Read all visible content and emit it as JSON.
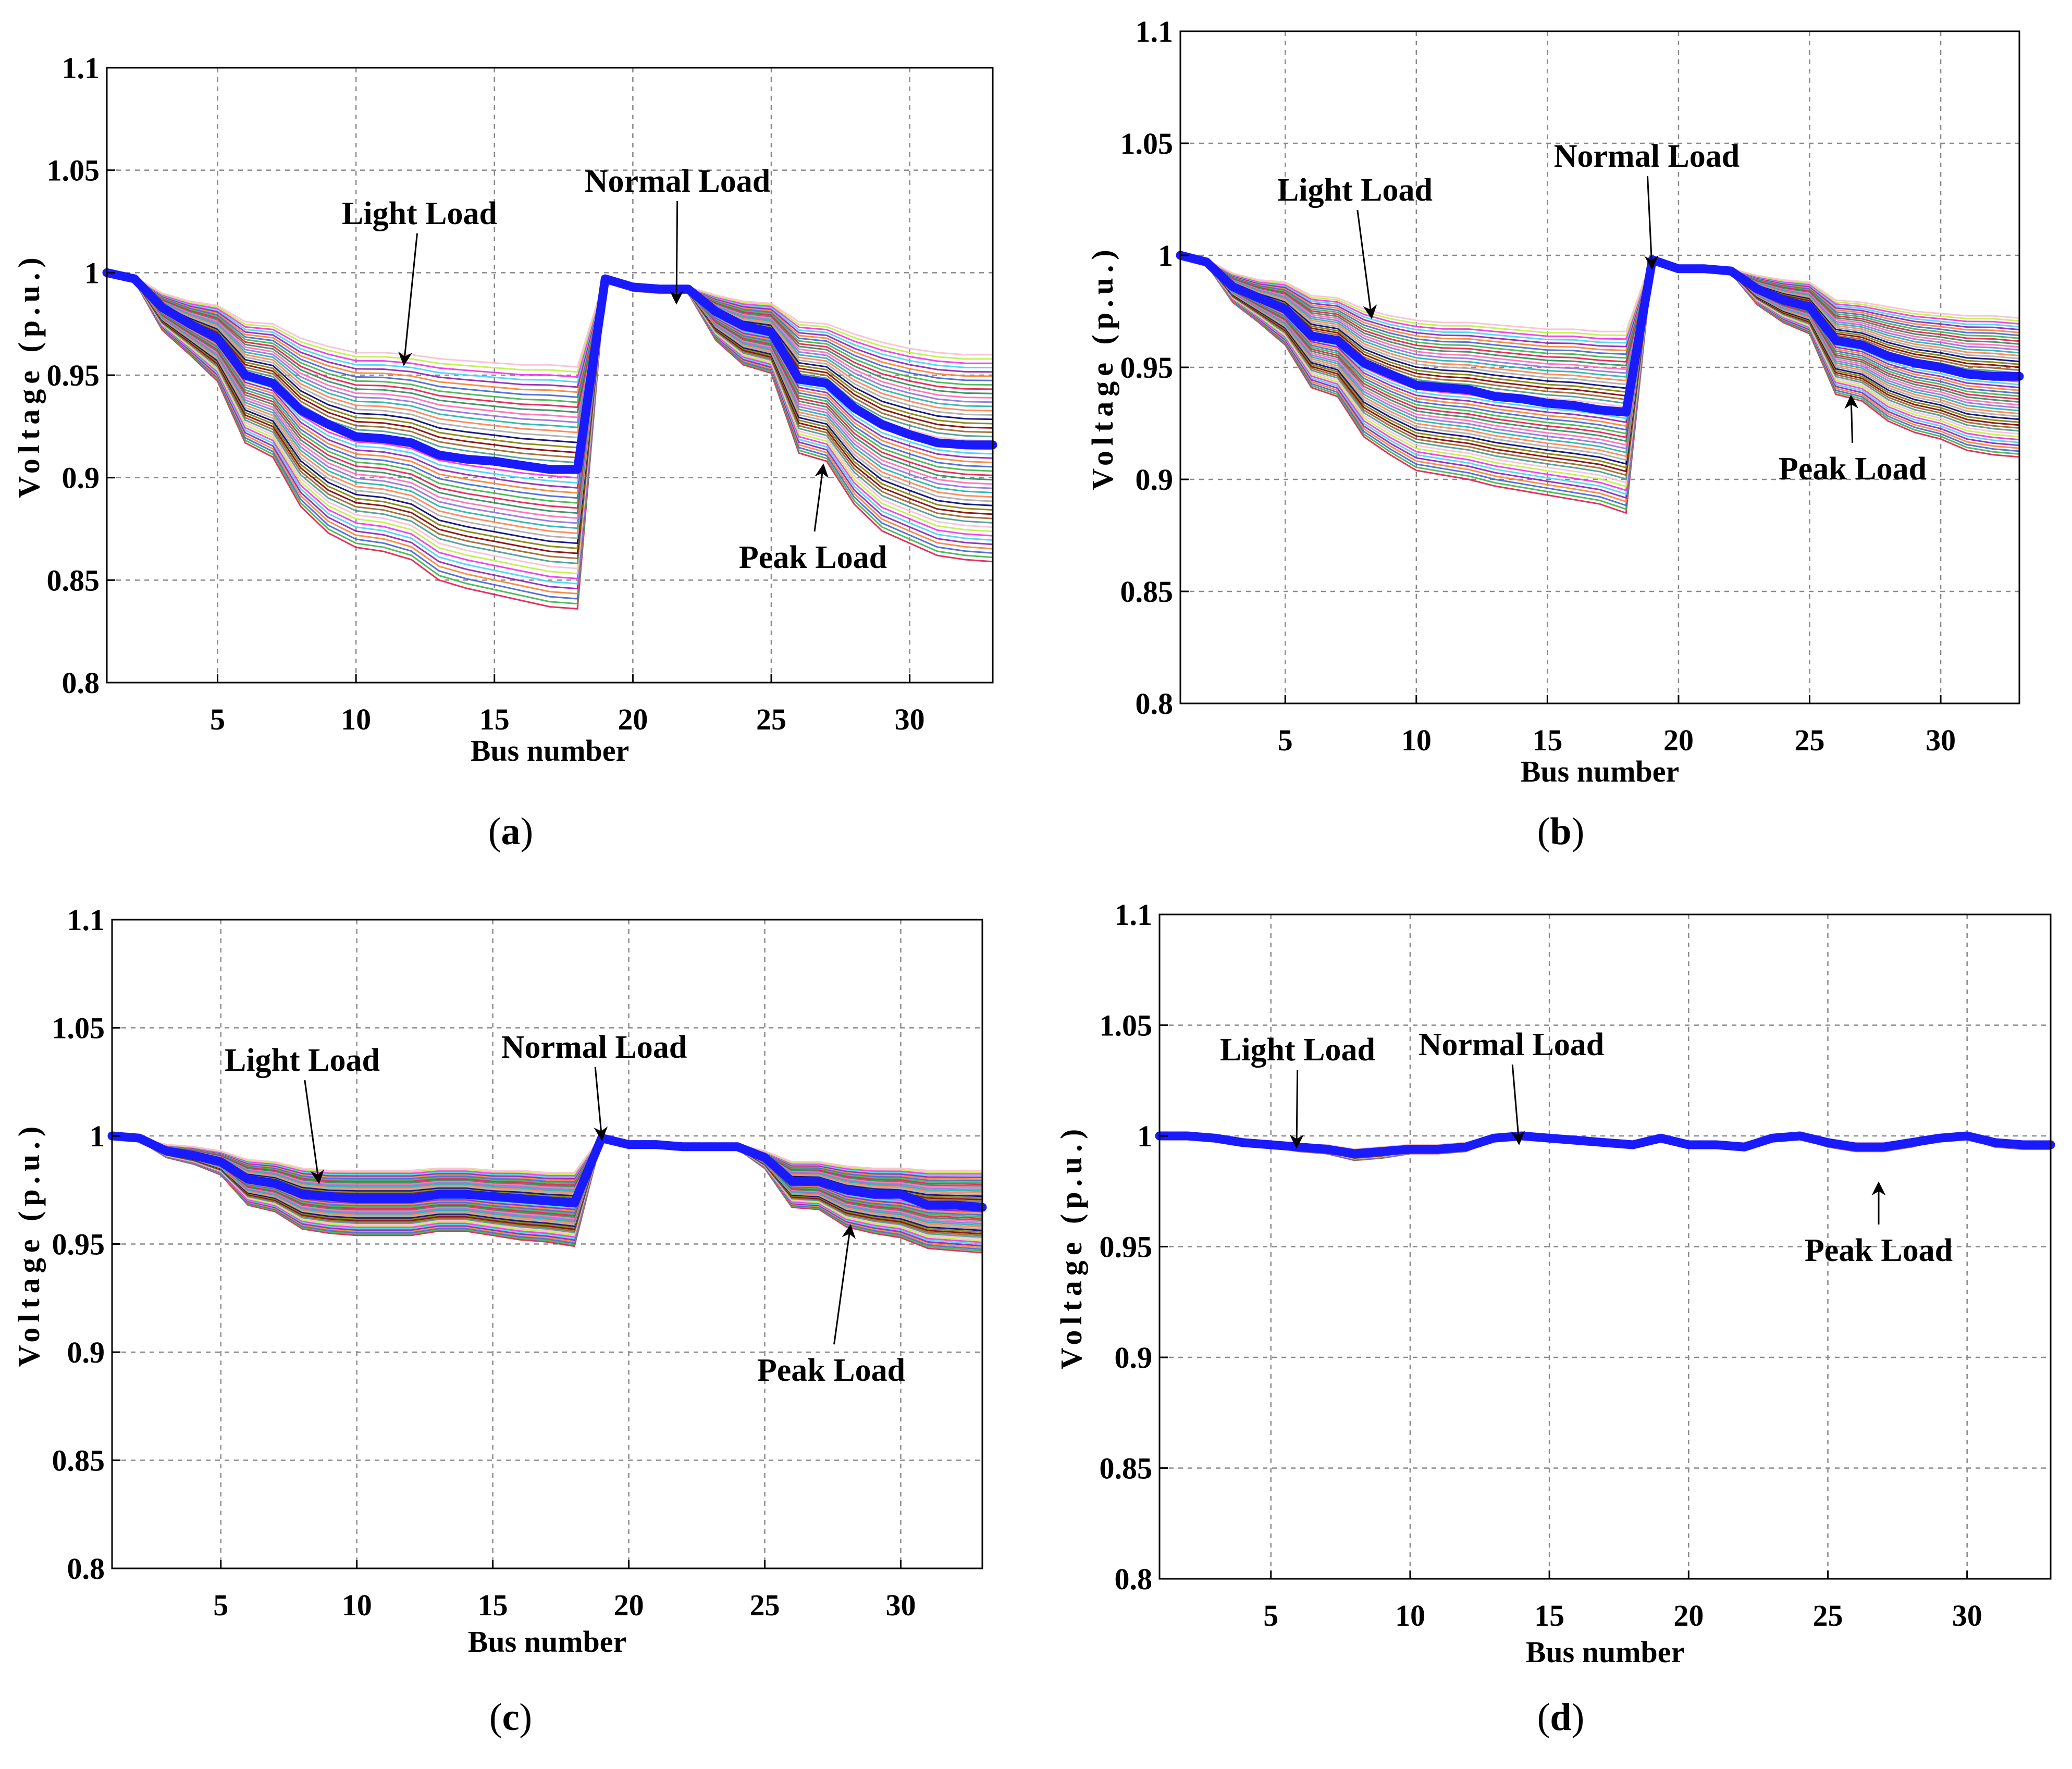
{
  "chart_data": [
    {
      "type": "line",
      "panel": "a",
      "xlabel": "Bus number",
      "ylabel": "Voltage (p.u.)",
      "xlim": [
        1,
        33
      ],
      "ylim": [
        0.8,
        1.1
      ],
      "xticks": [
        5,
        10,
        15,
        20,
        25,
        30
      ],
      "yticks": [
        "0.8",
        "0.85",
        "0.9",
        "0.95",
        "1",
        "1.05",
        "1.1"
      ],
      "grid": true,
      "x": [
        1,
        2,
        3,
        4,
        5,
        6,
        7,
        8,
        9,
        10,
        11,
        12,
        13,
        14,
        15,
        16,
        17,
        18,
        19,
        20,
        21,
        22,
        23,
        24,
        25,
        26,
        27,
        28,
        29,
        30,
        31,
        32,
        33
      ],
      "highlight_series": {
        "name": "Normal Load",
        "color": "#1a1aff",
        "values": [
          1.0,
          0.997,
          0.983,
          0.975,
          0.968,
          0.95,
          0.946,
          0.933,
          0.926,
          0.92,
          0.919,
          0.917,
          0.911,
          0.909,
          0.908,
          0.906,
          0.904,
          0.904,
          0.997,
          0.993,
          0.992,
          0.992,
          0.981,
          0.974,
          0.971,
          0.948,
          0.946,
          0.934,
          0.926,
          0.921,
          0.917,
          0.916,
          0.916
        ]
      },
      "band_upper": [
        1.0,
        0.998,
        0.99,
        0.986,
        0.984,
        0.976,
        0.975,
        0.968,
        0.964,
        0.961,
        0.961,
        0.96,
        0.958,
        0.957,
        0.956,
        0.955,
        0.955,
        0.954,
        0.998,
        0.994,
        0.993,
        0.993,
        0.989,
        0.986,
        0.985,
        0.976,
        0.975,
        0.97,
        0.966,
        0.963,
        0.961,
        0.96,
        0.96
      ],
      "band_lower": [
        1.0,
        0.996,
        0.972,
        0.96,
        0.947,
        0.917,
        0.91,
        0.886,
        0.873,
        0.866,
        0.864,
        0.86,
        0.85,
        0.846,
        0.843,
        0.84,
        0.837,
        0.836,
        0.996,
        0.991,
        0.99,
        0.99,
        0.967,
        0.955,
        0.951,
        0.912,
        0.908,
        0.887,
        0.874,
        0.868,
        0.862,
        0.86,
        0.859
      ],
      "annotations": [
        {
          "text": "Light Load"
        },
        {
          "text": "Normal Load"
        },
        {
          "text": "Peak Load"
        }
      ]
    },
    {
      "type": "line",
      "panel": "b",
      "xlabel": "Bus number",
      "ylabel": "Voltage (p.u.)",
      "xlim": [
        1,
        33
      ],
      "ylim": [
        0.8,
        1.1
      ],
      "xticks": [
        5,
        10,
        15,
        20,
        25,
        30
      ],
      "yticks": [
        "0.8",
        "0.85",
        "0.9",
        "0.95",
        "1",
        "1.05",
        "1.1"
      ],
      "grid": true,
      "x": [
        1,
        2,
        3,
        4,
        5,
        6,
        7,
        8,
        9,
        10,
        11,
        12,
        13,
        14,
        15,
        16,
        17,
        18,
        19,
        20,
        21,
        22,
        23,
        24,
        25,
        26,
        27,
        28,
        29,
        30,
        31,
        32,
        33
      ],
      "highlight_series": {
        "name": "Normal Load",
        "color": "#1a1aff",
        "values": [
          1.0,
          0.997,
          0.986,
          0.981,
          0.976,
          0.964,
          0.962,
          0.952,
          0.947,
          0.942,
          0.941,
          0.94,
          0.937,
          0.936,
          0.934,
          0.933,
          0.931,
          0.93,
          0.998,
          0.994,
          0.994,
          0.993,
          0.985,
          0.98,
          0.977,
          0.962,
          0.96,
          0.955,
          0.952,
          0.95,
          0.947,
          0.946,
          0.946
        ]
      },
      "band_upper": [
        1.0,
        0.998,
        0.992,
        0.989,
        0.988,
        0.982,
        0.981,
        0.976,
        0.973,
        0.971,
        0.97,
        0.97,
        0.969,
        0.968,
        0.967,
        0.967,
        0.966,
        0.966,
        0.999,
        0.995,
        0.995,
        0.994,
        0.991,
        0.989,
        0.988,
        0.98,
        0.979,
        0.977,
        0.975,
        0.974,
        0.973,
        0.973,
        0.972
      ],
      "band_lower": [
        1.0,
        0.996,
        0.979,
        0.97,
        0.96,
        0.941,
        0.937,
        0.919,
        0.911,
        0.904,
        0.902,
        0.9,
        0.897,
        0.895,
        0.893,
        0.891,
        0.889,
        0.885,
        0.997,
        0.993,
        0.993,
        0.992,
        0.978,
        0.97,
        0.965,
        0.938,
        0.935,
        0.926,
        0.921,
        0.918,
        0.913,
        0.911,
        0.91
      ],
      "annotations": [
        {
          "text": "Light Load"
        },
        {
          "text": "Normal Load"
        },
        {
          "text": "Peak Load"
        }
      ]
    },
    {
      "type": "line",
      "panel": "c",
      "xlabel": "Bus number",
      "ylabel": "Voltage (p.u.)",
      "xlim": [
        1,
        33
      ],
      "ylim": [
        0.8,
        1.1
      ],
      "xticks": [
        5,
        10,
        15,
        20,
        25,
        30
      ],
      "yticks": [
        "0.8",
        "0.85",
        "0.9",
        "0.95",
        "1",
        "1.05",
        "1.1"
      ],
      "grid": true,
      "x": [
        1,
        2,
        3,
        4,
        5,
        6,
        7,
        8,
        9,
        10,
        11,
        12,
        13,
        14,
        15,
        16,
        17,
        18,
        19,
        20,
        21,
        22,
        23,
        24,
        25,
        26,
        27,
        28,
        29,
        30,
        31,
        32,
        33
      ],
      "highlight_series": {
        "name": "Normal Load",
        "color": "#1a1aff",
        "values": [
          1.0,
          0.999,
          0.993,
          0.991,
          0.988,
          0.98,
          0.978,
          0.973,
          0.972,
          0.971,
          0.971,
          0.971,
          0.973,
          0.973,
          0.972,
          0.971,
          0.97,
          0.969,
          0.999,
          0.996,
          0.996,
          0.995,
          0.995,
          0.995,
          0.99,
          0.979,
          0.979,
          0.975,
          0.973,
          0.973,
          0.968,
          0.968,
          0.967
        ]
      },
      "band_upper": [
        1.0,
        0.999,
        0.996,
        0.995,
        0.993,
        0.989,
        0.988,
        0.985,
        0.984,
        0.984,
        0.984,
        0.984,
        0.985,
        0.985,
        0.984,
        0.984,
        0.983,
        0.983,
        1.0,
        0.997,
        0.997,
        0.996,
        0.996,
        0.996,
        0.993,
        0.988,
        0.988,
        0.986,
        0.985,
        0.985,
        0.984,
        0.984,
        0.984
      ],
      "band_lower": [
        1.0,
        0.998,
        0.99,
        0.987,
        0.982,
        0.968,
        0.965,
        0.957,
        0.955,
        0.954,
        0.954,
        0.954,
        0.956,
        0.956,
        0.954,
        0.952,
        0.951,
        0.949,
        0.999,
        0.995,
        0.995,
        0.994,
        0.994,
        0.994,
        0.985,
        0.967,
        0.966,
        0.958,
        0.955,
        0.953,
        0.948,
        0.947,
        0.946
      ],
      "annotations": [
        {
          "text": "Light Load"
        },
        {
          "text": "Normal Load"
        },
        {
          "text": "Peak Load"
        }
      ]
    },
    {
      "type": "line",
      "panel": "d",
      "xlabel": "Bus number",
      "ylabel": "Voltage (p.u.)",
      "xlim": [
        1,
        33
      ],
      "ylim": [
        0.8,
        1.1
      ],
      "xticks": [
        5,
        10,
        15,
        20,
        25,
        30
      ],
      "yticks": [
        "0.8",
        "0.85",
        "0.9",
        "0.95",
        "1",
        "1.05",
        "1.1"
      ],
      "grid": true,
      "x": [
        1,
        2,
        3,
        4,
        5,
        6,
        7,
        8,
        9,
        10,
        11,
        12,
        13,
        14,
        15,
        16,
        17,
        18,
        19,
        20,
        21,
        22,
        23,
        24,
        25,
        26,
        27,
        28,
        29,
        30,
        31,
        32,
        33
      ],
      "highlight_series": {
        "name": "Normal Load",
        "color": "#1a1aff",
        "values": [
          1.0,
          1.0,
          0.999,
          0.997,
          0.996,
          0.995,
          0.994,
          0.992,
          0.993,
          0.994,
          0.994,
          0.995,
          0.999,
          1.0,
          0.999,
          0.998,
          0.997,
          0.996,
          0.999,
          0.996,
          0.996,
          0.995,
          0.999,
          1.0,
          0.997,
          0.995,
          0.995,
          0.997,
          0.999,
          1.0,
          0.997,
          0.996,
          0.996
        ]
      },
      "band_upper": [
        1.0,
        1.0,
        1.0,
        0.998,
        0.997,
        0.996,
        0.996,
        0.994,
        0.995,
        0.996,
        0.996,
        0.997,
        1.0,
        1.001,
        1.0,
        0.999,
        0.998,
        0.997,
        1.0,
        0.997,
        0.997,
        0.997,
        1.0,
        1.001,
        0.998,
        0.997,
        0.997,
        0.998,
        1.0,
        1.001,
        0.998,
        0.997,
        0.997
      ],
      "band_lower": [
        1.0,
        0.999,
        0.998,
        0.996,
        0.995,
        0.993,
        0.992,
        0.989,
        0.99,
        0.992,
        0.992,
        0.993,
        0.998,
        0.999,
        0.998,
        0.997,
        0.996,
        0.995,
        0.998,
        0.995,
        0.995,
        0.994,
        0.998,
        0.999,
        0.995,
        0.993,
        0.993,
        0.995,
        0.998,
        0.999,
        0.995,
        0.994,
        0.994
      ],
      "annotations": [
        {
          "text": "Light Load"
        },
        {
          "text": "Normal Load"
        },
        {
          "text": "Peak Load"
        }
      ]
    }
  ],
  "panel_labels": {
    "a": {
      "open": "(",
      "letter": "a",
      "close": ")"
    },
    "b": {
      "open": "(",
      "letter": "b",
      "close": ")"
    },
    "c": {
      "open": "(",
      "letter": "c",
      "close": ")"
    },
    "d": {
      "open": "(",
      "letter": "d",
      "close": ")"
    }
  },
  "band_palette": [
    "#e6194b",
    "#3cb44b",
    "#4363d8",
    "#f58231",
    "#911eb4",
    "#42d4f4",
    "#f032e6",
    "#bfef45",
    "#fabed4",
    "#469990",
    "#9a6324",
    "#800000",
    "#808000",
    "#000075",
    "#a9a9a9",
    "#ff7f50",
    "#20b2aa",
    "#9370db",
    "#ff69b4",
    "#2e8b57"
  ]
}
